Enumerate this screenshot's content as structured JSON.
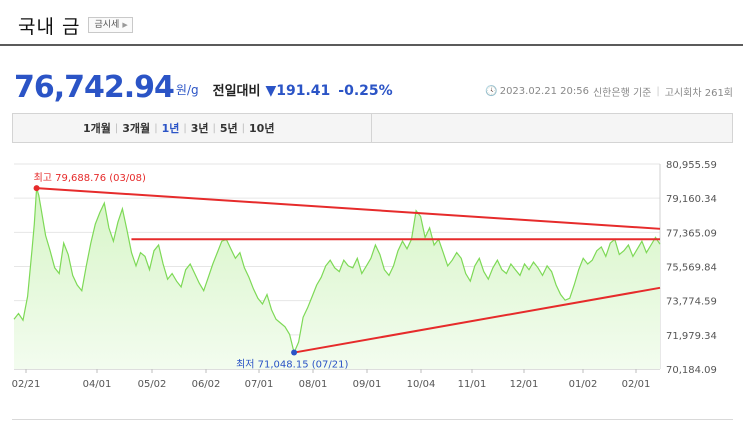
{
  "header": {
    "title": "국내 금",
    "quote_button": "금시세"
  },
  "summary": {
    "price": "76,742.94",
    "unit": "원/g",
    "compare_label": "전일대비",
    "change_value": "▼191.41",
    "change_percent": "-0.25%",
    "timestamp": "2023.02.21 20:56",
    "source": "신한은행 기준",
    "notice_count": "고시회차 261회",
    "color_down": "#2b54c6"
  },
  "period_tabs": [
    {
      "label": "1개월",
      "active": false
    },
    {
      "label": "3개월",
      "active": false
    },
    {
      "label": "1년",
      "active": true
    },
    {
      "label": "3년",
      "active": false
    },
    {
      "label": "5년",
      "active": false
    },
    {
      "label": "10년",
      "active": false
    }
  ],
  "chart_data": {
    "type": "area",
    "x_ticks": [
      "02/21",
      "04/01",
      "05/02",
      "06/02",
      "07/01",
      "08/01",
      "09/01",
      "10/04",
      "11/01",
      "12/01",
      "01/02",
      "02/01"
    ],
    "y_ticks": [
      "80,955.59",
      "79,160.34",
      "77,365.09",
      "75,569.84",
      "73,774.59",
      "71,979.34",
      "70,184.09"
    ],
    "ylim": [
      70184.09,
      80955.59
    ],
    "series": [
      {
        "values": [
          [
            0,
            72800
          ],
          [
            2,
            73100
          ],
          [
            4,
            72750
          ],
          [
            6,
            74000
          ],
          [
            8,
            76500
          ],
          [
            9,
            77800
          ],
          [
            10,
            79688.76
          ],
          [
            11,
            79300
          ],
          [
            12,
            78600
          ],
          [
            14,
            77200
          ],
          [
            16,
            76400
          ],
          [
            18,
            75500
          ],
          [
            20,
            75200
          ],
          [
            22,
            76800
          ],
          [
            24,
            76200
          ],
          [
            26,
            75100
          ],
          [
            28,
            74600
          ],
          [
            30,
            74300
          ],
          [
            32,
            75600
          ],
          [
            34,
            76800
          ],
          [
            36,
            77800
          ],
          [
            38,
            78400
          ],
          [
            40,
            78900
          ],
          [
            42,
            77600
          ],
          [
            44,
            76900
          ],
          [
            46,
            77900
          ],
          [
            48,
            78600
          ],
          [
            50,
            77500
          ],
          [
            52,
            76300
          ],
          [
            54,
            75600
          ],
          [
            56,
            76300
          ],
          [
            58,
            76100
          ],
          [
            60,
            75400
          ],
          [
            62,
            76400
          ],
          [
            64,
            76700
          ],
          [
            66,
            75700
          ],
          [
            68,
            74900
          ],
          [
            70,
            75200
          ],
          [
            72,
            74800
          ],
          [
            74,
            74500
          ],
          [
            76,
            75400
          ],
          [
            78,
            75700
          ],
          [
            80,
            75200
          ],
          [
            82,
            74700
          ],
          [
            84,
            74300
          ],
          [
            86,
            75000
          ],
          [
            88,
            75700
          ],
          [
            90,
            76300
          ],
          [
            92,
            76900
          ],
          [
            94,
            77000
          ],
          [
            96,
            76500
          ],
          [
            98,
            76000
          ],
          [
            100,
            76300
          ],
          [
            102,
            75500
          ],
          [
            104,
            75000
          ],
          [
            106,
            74400
          ],
          [
            108,
            73900
          ],
          [
            110,
            73600
          ],
          [
            112,
            74100
          ],
          [
            114,
            73300
          ],
          [
            116,
            72800
          ],
          [
            118,
            72600
          ],
          [
            120,
            72400
          ],
          [
            122,
            72000
          ],
          [
            124,
            71048.15
          ],
          [
            126,
            71600
          ],
          [
            128,
            72900
          ],
          [
            130,
            73400
          ],
          [
            132,
            74000
          ],
          [
            134,
            74600
          ],
          [
            136,
            75000
          ],
          [
            138,
            75600
          ],
          [
            140,
            75900
          ],
          [
            142,
            75500
          ],
          [
            144,
            75300
          ],
          [
            146,
            75900
          ],
          [
            148,
            75600
          ],
          [
            150,
            75500
          ],
          [
            152,
            76000
          ],
          [
            154,
            75200
          ],
          [
            156,
            75600
          ],
          [
            158,
            76000
          ],
          [
            160,
            76700
          ],
          [
            162,
            76200
          ],
          [
            164,
            75400
          ],
          [
            166,
            75100
          ],
          [
            168,
            75600
          ],
          [
            170,
            76400
          ],
          [
            172,
            76900
          ],
          [
            174,
            76500
          ],
          [
            176,
            77000
          ],
          [
            178,
            78500
          ],
          [
            180,
            78200
          ],
          [
            182,
            77100
          ],
          [
            184,
            77600
          ],
          [
            186,
            76700
          ],
          [
            188,
            77000
          ],
          [
            190,
            76300
          ],
          [
            192,
            75600
          ],
          [
            194,
            75900
          ],
          [
            196,
            76300
          ],
          [
            198,
            76000
          ],
          [
            200,
            75200
          ],
          [
            202,
            74800
          ],
          [
            204,
            75600
          ],
          [
            206,
            76000
          ],
          [
            208,
            75300
          ],
          [
            210,
            74900
          ],
          [
            212,
            75500
          ],
          [
            214,
            75900
          ],
          [
            216,
            75400
          ],
          [
            218,
            75200
          ],
          [
            220,
            75700
          ],
          [
            222,
            75400
          ],
          [
            224,
            75100
          ],
          [
            226,
            75700
          ],
          [
            228,
            75400
          ],
          [
            230,
            75800
          ],
          [
            232,
            75500
          ],
          [
            234,
            75100
          ],
          [
            236,
            75600
          ],
          [
            238,
            75300
          ],
          [
            240,
            74600
          ],
          [
            242,
            74100
          ],
          [
            244,
            73800
          ],
          [
            246,
            73900
          ],
          [
            248,
            74600
          ],
          [
            250,
            75400
          ],
          [
            252,
            76000
          ],
          [
            254,
            75700
          ],
          [
            256,
            75900
          ],
          [
            258,
            76400
          ],
          [
            260,
            76600
          ],
          [
            262,
            76100
          ],
          [
            264,
            76800
          ],
          [
            266,
            77000
          ],
          [
            268,
            76200
          ],
          [
            270,
            76400
          ],
          [
            272,
            76700
          ],
          [
            274,
            76100
          ],
          [
            276,
            76500
          ],
          [
            278,
            76900
          ],
          [
            280,
            76300
          ],
          [
            282,
            76700
          ],
          [
            284,
            77100
          ],
          [
            286,
            76742.94
          ]
        ]
      }
    ],
    "annotations": {
      "high_label": "최고 79,688.76 (03/08)",
      "low_label": "최저 71,048.15 (07/21)"
    },
    "trendlines": [
      [
        [
          10,
          79688.76
        ],
        [
          286,
          77550
        ]
      ],
      [
        [
          52,
          77000
        ],
        [
          286,
          77000
        ]
      ],
      [
        [
          124,
          71048.15
        ],
        [
          286,
          74450
        ]
      ]
    ],
    "colors": {
      "line": "#7ed957",
      "fill_top": "#d6f5c6",
      "fill_bottom": "#f3fcef",
      "trend": "#e62b2b",
      "high": "#e62b2b",
      "low": "#2b54c6"
    }
  }
}
